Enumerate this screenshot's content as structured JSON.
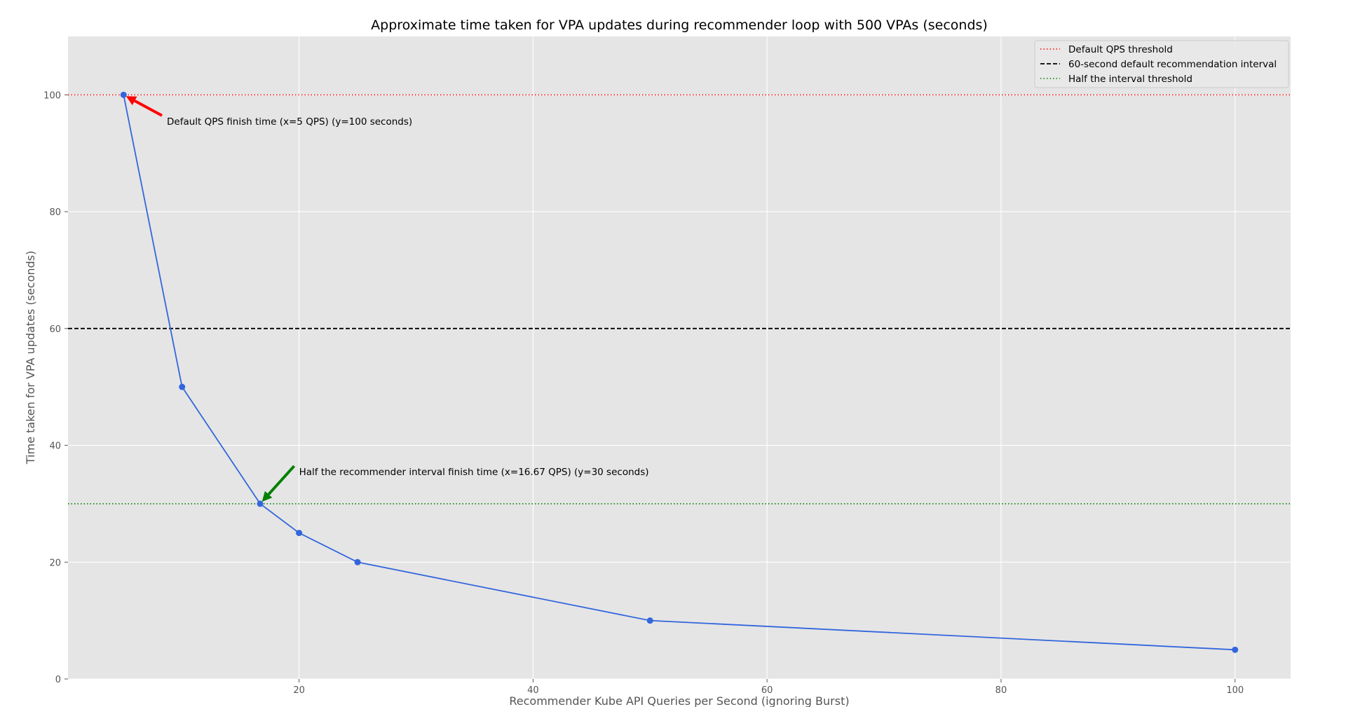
{
  "chart_data": {
    "type": "line",
    "title": "Approximate time taken for VPA updates during recommender loop with 500 VPAs (seconds)",
    "xlabel": "Recommender Kube API Queries per Second (ignoring Burst)",
    "ylabel": "Time taken for VPA updates (seconds)",
    "xlim": [
      0.25,
      104.75
    ],
    "ylim": [
      0,
      110
    ],
    "xticks": [
      20,
      40,
      60,
      80,
      100
    ],
    "yticks": [
      0,
      20,
      40,
      60,
      80,
      100
    ],
    "grid": true,
    "legend_position": "top-right",
    "series": [
      {
        "x": [
          5,
          10,
          16.67,
          20,
          25,
          50,
          100
        ],
        "y": [
          100,
          50,
          30,
          25,
          20,
          10,
          5
        ],
        "color": "#3366dd",
        "marker": "circle"
      }
    ],
    "reference_lines": [
      {
        "name": "Default QPS threshold",
        "y": 100,
        "color": "#ff0000",
        "style": "dotted"
      },
      {
        "name": "60-second default recommendation interval",
        "y": 60,
        "color": "#000000",
        "style": "dashed"
      },
      {
        "name": "Half the interval threshold",
        "y": 30,
        "color": "#008000",
        "style": "dotted"
      }
    ],
    "annotations": [
      {
        "text": "Default QPS finish time (x=5 QPS) (y=100 seconds)",
        "point": [
          5,
          100
        ],
        "text_at": [
          8.7,
          95.5
        ],
        "color": "#ff0000"
      },
      {
        "text": "Half the recommender interval finish time (x=16.67 QPS) (y=30 seconds)",
        "point": [
          16.67,
          30
        ],
        "text_at": [
          20,
          35.5
        ],
        "color": "#008000"
      }
    ],
    "colors": {
      "plot_background": "#e5e5e5",
      "grid": "#ffffff",
      "axis_text": "#555555"
    }
  }
}
